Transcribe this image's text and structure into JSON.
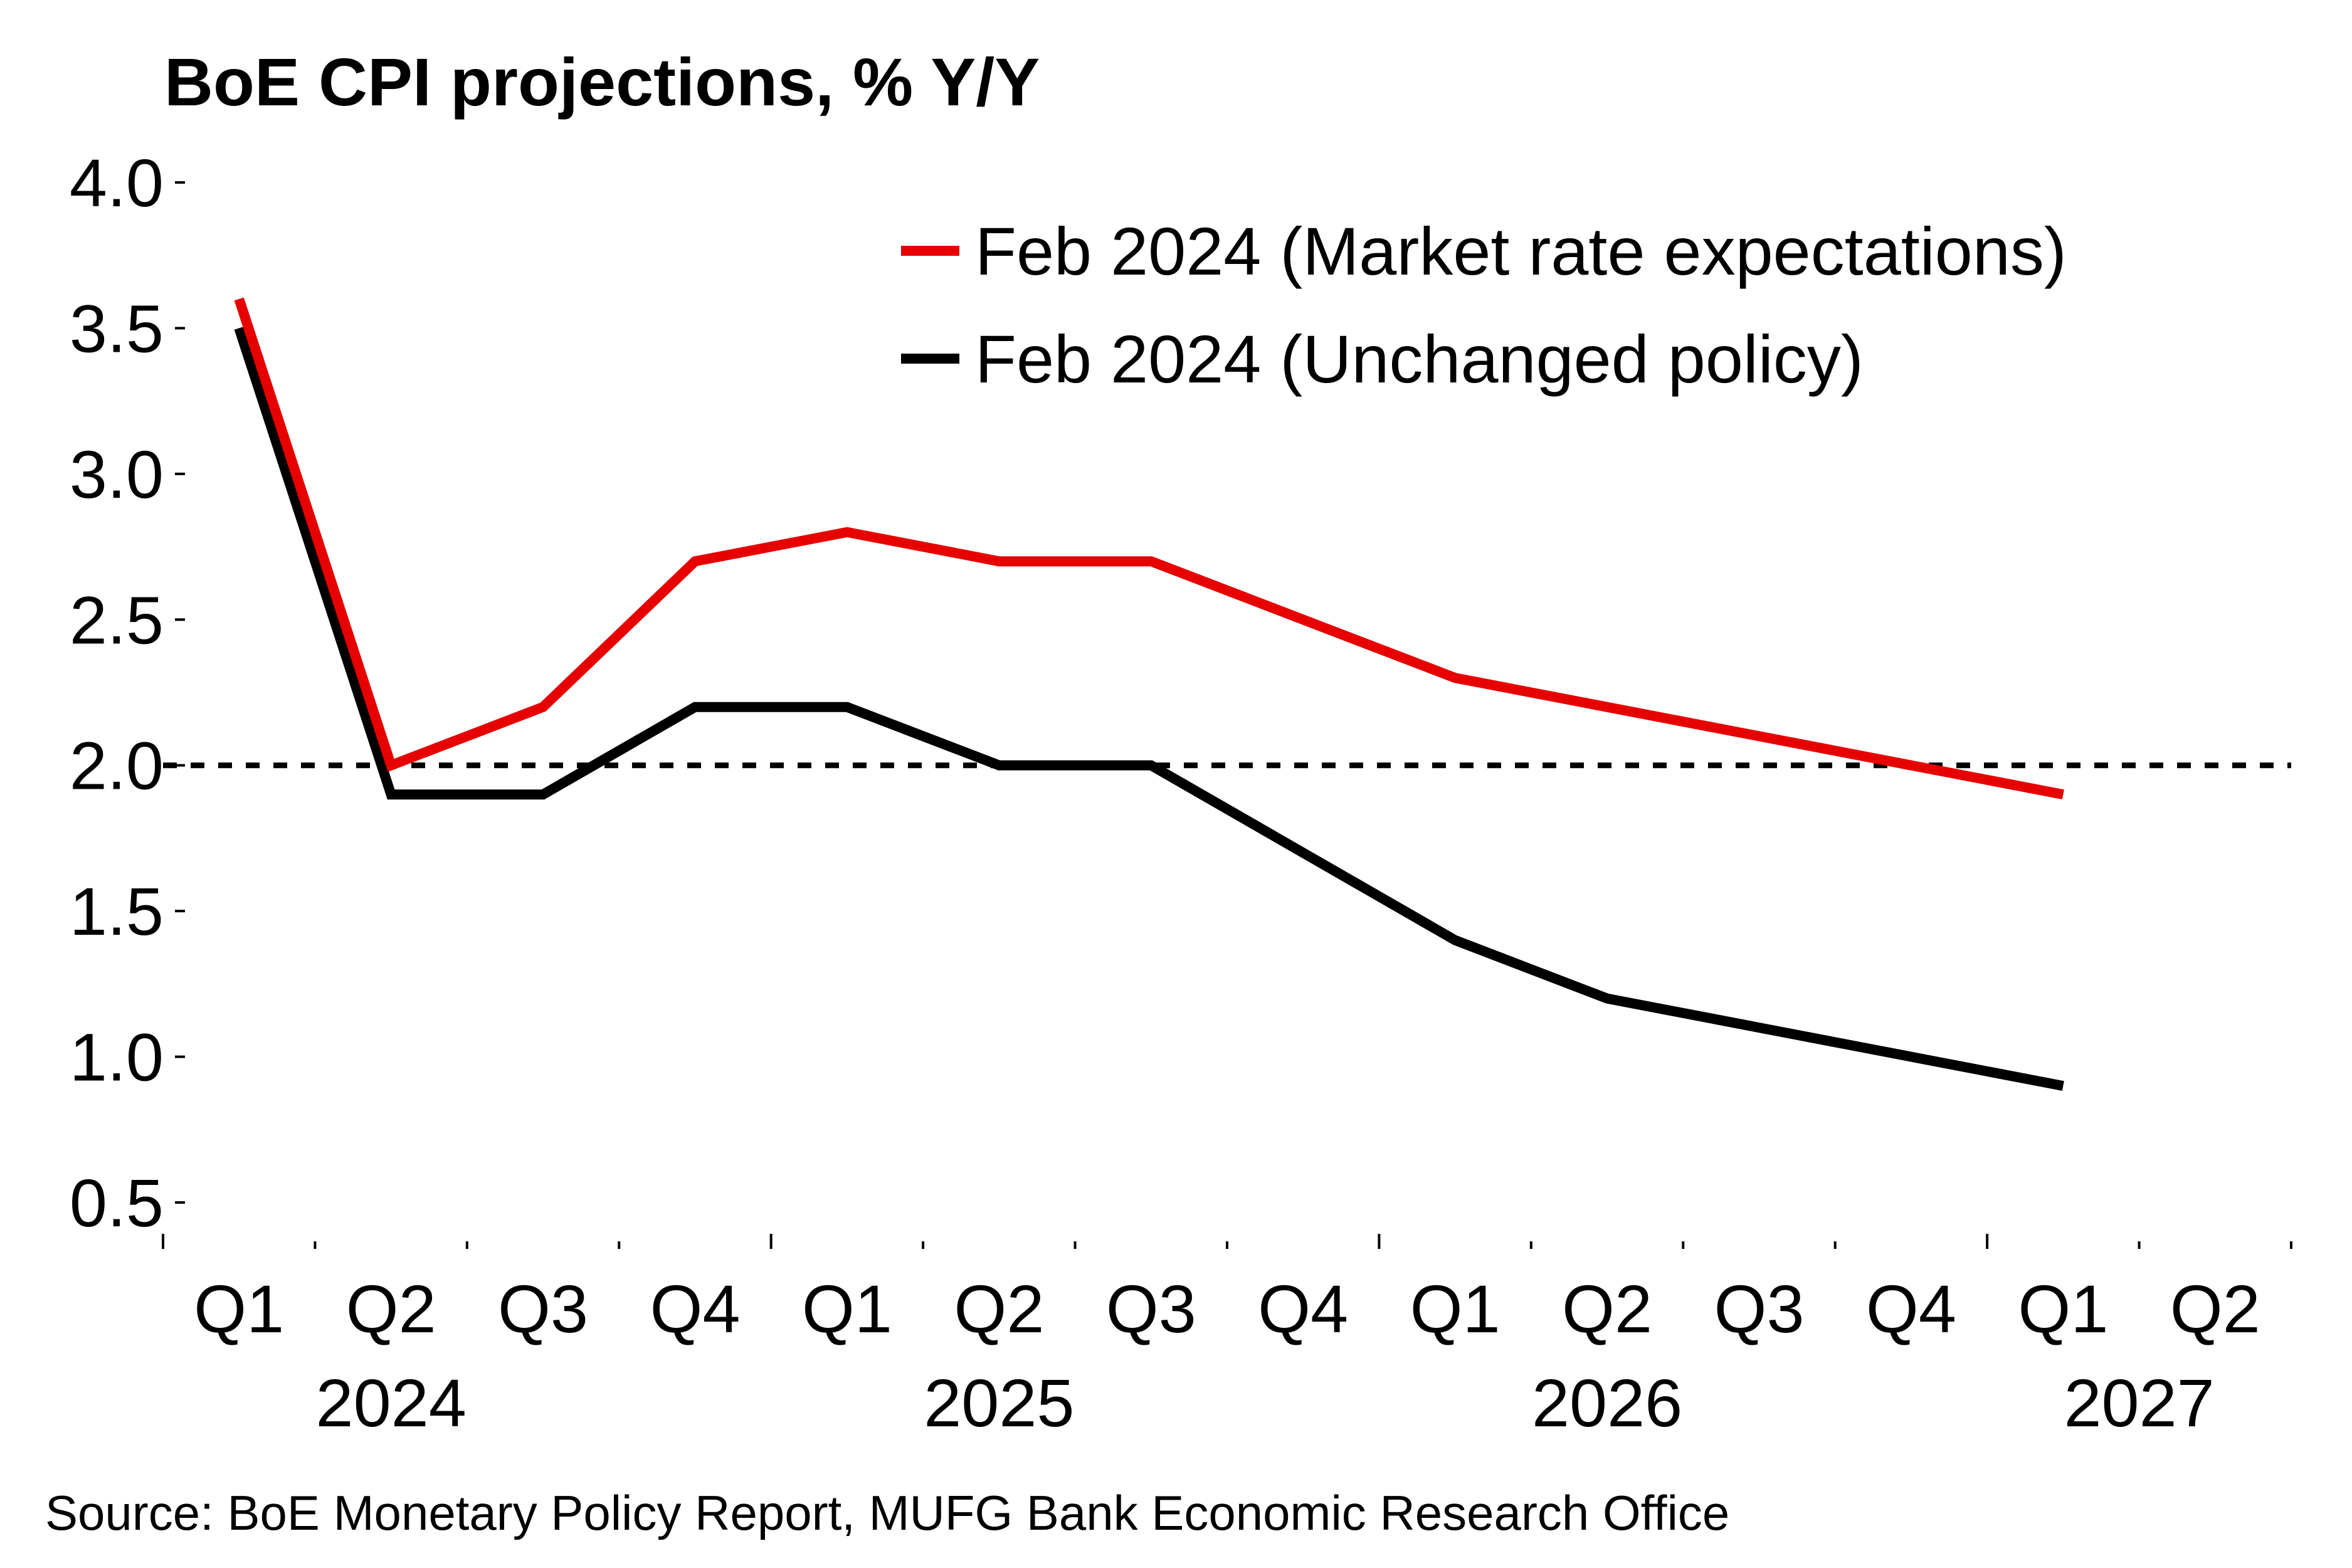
{
  "chart_data": {
    "type": "line",
    "title": "BoE CPI projections, % Y/Y",
    "xlabel": "",
    "ylabel": "",
    "ylim": [
      0.5,
      4.0
    ],
    "yticks": [
      "4.0",
      "3.5",
      "3.0",
      "2.5",
      "2.0",
      "1.5",
      "1.0",
      "0.5"
    ],
    "ytick_values": [
      4.0,
      3.5,
      3.0,
      2.5,
      2.0,
      1.5,
      1.0,
      0.5
    ],
    "categories": [
      "Q1",
      "Q2",
      "Q3",
      "Q4",
      "Q1",
      "Q2",
      "Q3",
      "Q4",
      "Q1",
      "Q2",
      "Q3",
      "Q4",
      "Q1",
      "Q2"
    ],
    "year_groups": [
      {
        "label": "2024",
        "start": 0,
        "end": 3
      },
      {
        "label": "2025",
        "start": 4,
        "end": 7
      },
      {
        "label": "2026",
        "start": 8,
        "end": 11
      },
      {
        "label": "2027",
        "start": 12,
        "end": 13
      }
    ],
    "series": [
      {
        "name": "Feb 2024 (Market rate expectations)",
        "color": "#e60000",
        "values": [
          3.6,
          2.0,
          2.2,
          2.7,
          2.8,
          2.7,
          2.7,
          2.5,
          2.3,
          2.2,
          2.1,
          2.0,
          1.9,
          null
        ]
      },
      {
        "name": "Feb 2024 (Unchanged policy)",
        "color": "#000000",
        "values": [
          3.5,
          1.9,
          1.9,
          2.2,
          2.2,
          2.0,
          2.0,
          1.7,
          1.4,
          1.2,
          1.1,
          1.0,
          0.9,
          null
        ]
      }
    ],
    "reference_line": {
      "value": 2.0,
      "style": "dashed",
      "color": "#000000"
    },
    "legend_position": "top-right",
    "grid": false
  },
  "source": "Source: BoE Monetary Policy Report, MUFG Bank Economic Research Office"
}
